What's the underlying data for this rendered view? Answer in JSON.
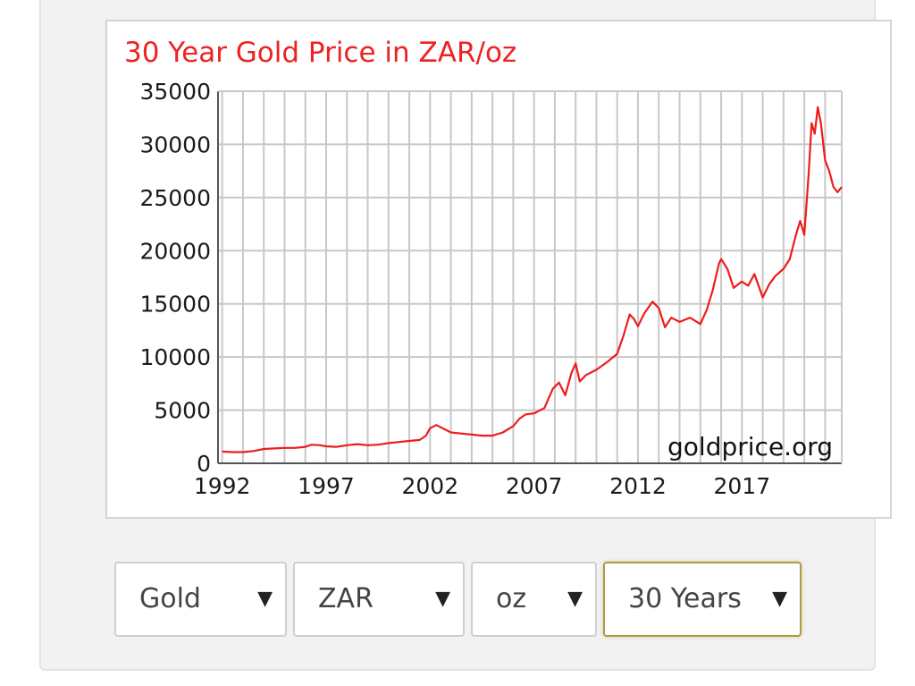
{
  "chart_data": {
    "type": "line",
    "title": "30 Year Gold Price in ZAR/oz",
    "watermark": "goldprice.org",
    "ylim": [
      0,
      35000
    ],
    "yticks": [
      0,
      5000,
      10000,
      15000,
      20000,
      25000,
      30000,
      35000
    ],
    "xlim": [
      1991.8,
      2021.8
    ],
    "xticks": [
      1992,
      1997,
      2002,
      2007,
      2012,
      2017
    ],
    "grid": true,
    "line_color": "#ee1c1c",
    "series": [
      {
        "x": [
          1992.0,
          1992.5,
          1993.0,
          1993.5,
          1994.0,
          1994.5,
          1995.0,
          1995.5,
          1996.0,
          1996.3,
          1996.7,
          1997.0,
          1997.5,
          1998.0,
          1998.5,
          1999.0,
          1999.5,
          2000.0,
          2000.5,
          2001.0,
          2001.5,
          2001.8,
          2002.0,
          2002.3,
          2002.6,
          2003.0,
          2003.5,
          2004.0,
          2004.5,
          2005.0,
          2005.5,
          2006.0,
          2006.3,
          2006.6,
          2007.0,
          2007.5,
          2007.9,
          2008.2,
          2008.5,
          2008.8,
          2009.0,
          2009.2,
          2009.5,
          2010.0,
          2010.5,
          2011.0,
          2011.3,
          2011.6,
          2011.8,
          2012.0,
          2012.3,
          2012.7,
          2013.0,
          2013.3,
          2013.6,
          2014.0,
          2014.5,
          2015.0,
          2015.3,
          2015.6,
          2015.9,
          2016.0,
          2016.3,
          2016.6,
          2017.0,
          2017.3,
          2017.6,
          2018.0,
          2018.3,
          2018.6,
          2019.0,
          2019.3,
          2019.6,
          2019.8,
          2020.0,
          2020.2,
          2020.35,
          2020.5,
          2020.65,
          2020.8,
          2021.0,
          2021.2,
          2021.4,
          2021.6,
          2021.8
        ],
        "y": [
          1100,
          1050,
          1050,
          1150,
          1350,
          1400,
          1450,
          1450,
          1550,
          1750,
          1700,
          1600,
          1550,
          1700,
          1800,
          1700,
          1750,
          1900,
          2000,
          2100,
          2200,
          2600,
          3300,
          3600,
          3300,
          2900,
          2800,
          2700,
          2600,
          2600,
          2900,
          3500,
          4200,
          4600,
          4700,
          5200,
          7000,
          7600,
          6400,
          8500,
          9400,
          7700,
          8300,
          8800,
          9500,
          10300,
          12000,
          14000,
          13600,
          12900,
          14100,
          15200,
          14600,
          12800,
          13700,
          13300,
          13700,
          13100,
          14400,
          16300,
          18800,
          19200,
          18300,
          16500,
          17100,
          16700,
          17800,
          15600,
          16800,
          17600,
          18300,
          19200,
          21500,
          22800,
          21500,
          27000,
          32000,
          31000,
          33500,
          32000,
          28500,
          27500,
          26000,
          25500,
          26000
        ]
      }
    ]
  },
  "controls": {
    "metal": "Gold",
    "currency": "ZAR",
    "unit": "oz",
    "period": "30 Years",
    "arrow": "▼"
  }
}
